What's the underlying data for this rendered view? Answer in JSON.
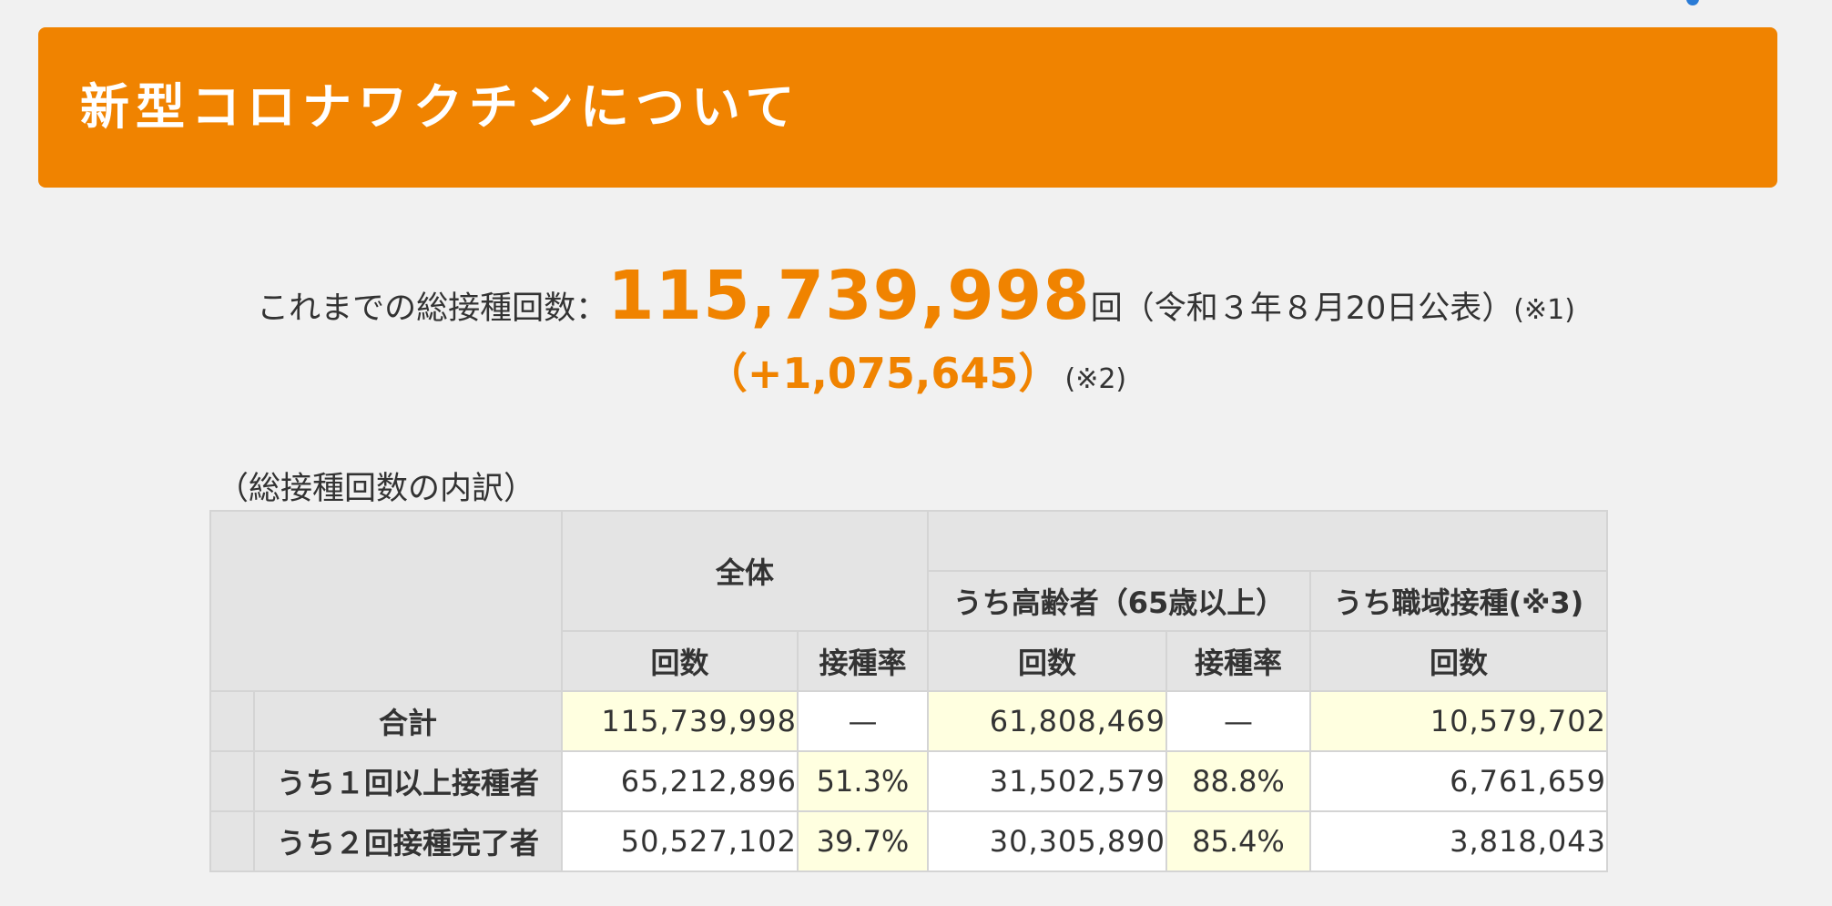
{
  "header": {
    "title": "新型コロナワクチンについて"
  },
  "summary": {
    "label": "これまでの総接種回数：",
    "total": "115,739,998",
    "suffix": "回（令和３年８月20日公表）",
    "note1": "(※1)",
    "diff": "（+1,075,645）",
    "note2": "(※2)"
  },
  "breakdown": {
    "caption": "（総接種回数の内訳）",
    "group_headers": {
      "all": "全体",
      "elderly": "うち高齢者（65歳以上）",
      "workplace": "うち職域接種(※3)"
    },
    "sub_headers": {
      "all_count": "回数",
      "all_rate": "接種率",
      "elderly_count": "回数",
      "elderly_rate": "接種率",
      "workplace_count": "回数"
    },
    "rows": [
      {
        "label": "合計",
        "all_count": "115,739,998",
        "all_rate": "—",
        "elderly_count": "61,808,469",
        "elderly_rate": "—",
        "workplace_count": "10,579,702"
      },
      {
        "label": "うち１回以上接種者",
        "all_count": "65,212,896",
        "all_rate": "51.3%",
        "elderly_count": "31,502,579",
        "elderly_rate": "88.8%",
        "workplace_count": "6,761,659"
      },
      {
        "label": "うち２回接種完了者",
        "all_count": "50,527,102",
        "all_rate": "39.7%",
        "elderly_count": "30,305,890",
        "elderly_rate": "85.4%",
        "workplace_count": "3,818,043"
      }
    ]
  },
  "colors": {
    "accent": "#f08300",
    "background": "#f1f1f1",
    "header_cell": "#e4e4e4",
    "highlight_cell": "#ffffe0"
  }
}
